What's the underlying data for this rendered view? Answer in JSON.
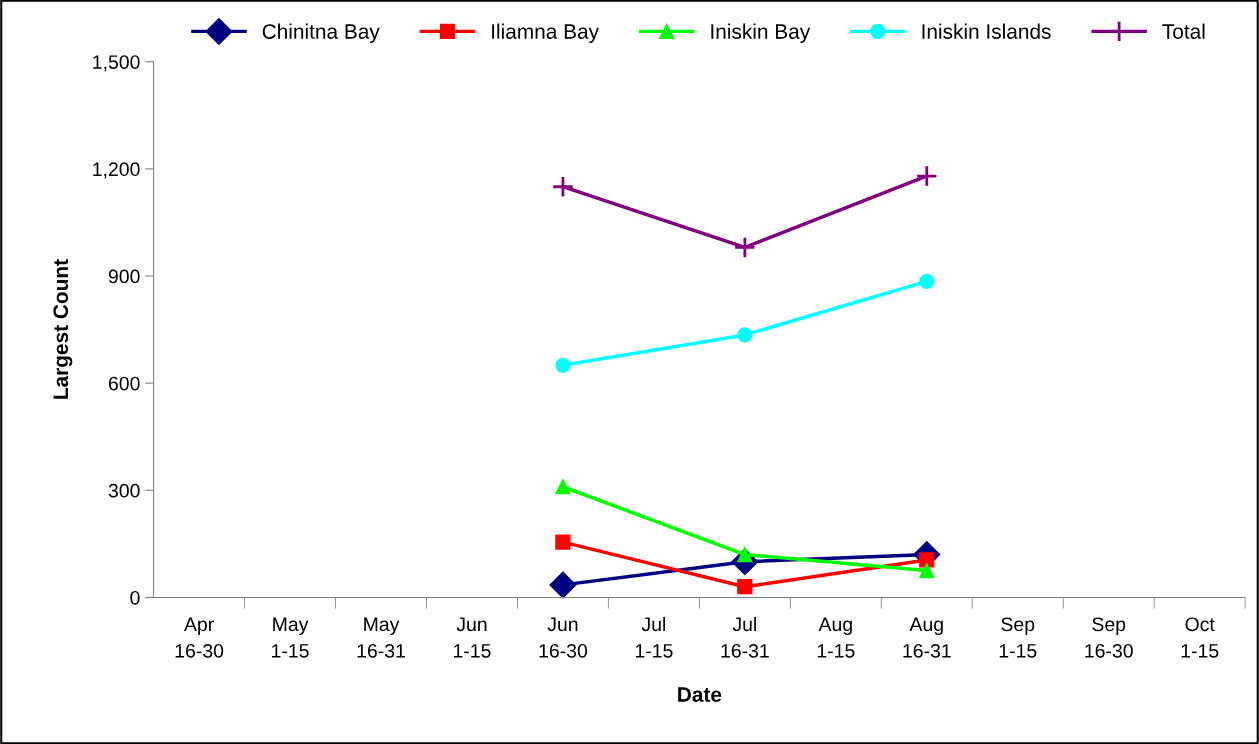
{
  "chart_data": {
    "type": "line",
    "xlabel": "Date",
    "ylabel": "Largest Count",
    "categories": [
      "Apr\n16-30",
      "May\n1-15",
      "May\n16-31",
      "Jun\n1-15",
      "Jun\n16-30",
      "Jul\n1-15",
      "Jul\n16-31",
      "Aug\n1-15",
      "Aug\n16-31",
      "Sep\n1-15",
      "Sep\n16-30",
      "Oct\n1-15"
    ],
    "series": [
      {
        "name": "Chinitna Bay",
        "color": "#000080",
        "marker": "diamond",
        "values": [
          null,
          null,
          null,
          null,
          35,
          null,
          100,
          null,
          120,
          null,
          null,
          null
        ]
      },
      {
        "name": "Iliamna Bay",
        "color": "#ff0000",
        "marker": "square",
        "values": [
          null,
          null,
          null,
          null,
          155,
          null,
          30,
          null,
          105,
          null,
          null,
          null
        ]
      },
      {
        "name": "Iniskin Bay",
        "color": "#00ff00",
        "marker": "triangle",
        "values": [
          null,
          null,
          null,
          null,
          310,
          null,
          120,
          null,
          75,
          null,
          null,
          null
        ]
      },
      {
        "name": "Iniskin Islands",
        "color": "#00ffff",
        "marker": "circle",
        "values": [
          null,
          null,
          null,
          null,
          650,
          null,
          735,
          null,
          885,
          null,
          null,
          null
        ]
      },
      {
        "name": "Total",
        "color": "#800080",
        "marker": "cross",
        "values": [
          null,
          null,
          null,
          null,
          1150,
          null,
          980,
          null,
          1180,
          null,
          null,
          null
        ]
      }
    ],
    "ylim": [
      0,
      1500
    ],
    "yticks": [
      {
        "value": 0,
        "label": "0"
      },
      {
        "value": 300,
        "label": "300"
      },
      {
        "value": 600,
        "label": "600"
      },
      {
        "value": 900,
        "label": "900"
      },
      {
        "value": 1200,
        "label": "1,200"
      },
      {
        "value": 1500,
        "label": "1,500"
      }
    ],
    "grid": false,
    "legend": "top",
    "line_style": "solid"
  }
}
